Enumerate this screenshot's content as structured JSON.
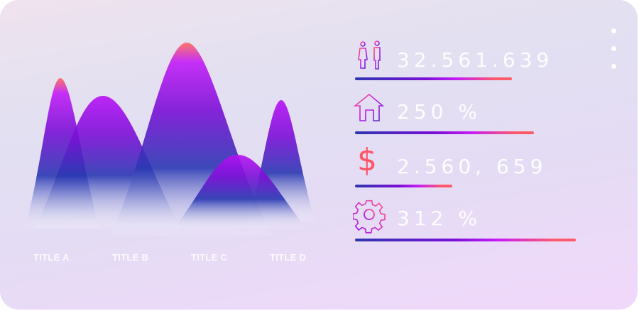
{
  "chart": {
    "categories": [
      "TITLE A",
      "TITLE B",
      "TITLE C",
      "TITLE D"
    ]
  },
  "stats": [
    {
      "icon": "people-icon",
      "value": "32.561.639",
      "progress": 0.71
    },
    {
      "icon": "house-icon",
      "value": "250 %",
      "progress": 0.81
    },
    {
      "icon": "dollar-icon",
      "value": "2.560, 659",
      "progress": 0.44
    },
    {
      "icon": "gear-icon",
      "value": "312 %",
      "progress": 1.0
    }
  ],
  "menu": {
    "icon": "more-vertical-icon"
  },
  "colors": {
    "blue": "#2e36b0",
    "purple": "#7a0fd6",
    "magenta": "#c51cf5",
    "coral": "#ff5a6a"
  }
}
